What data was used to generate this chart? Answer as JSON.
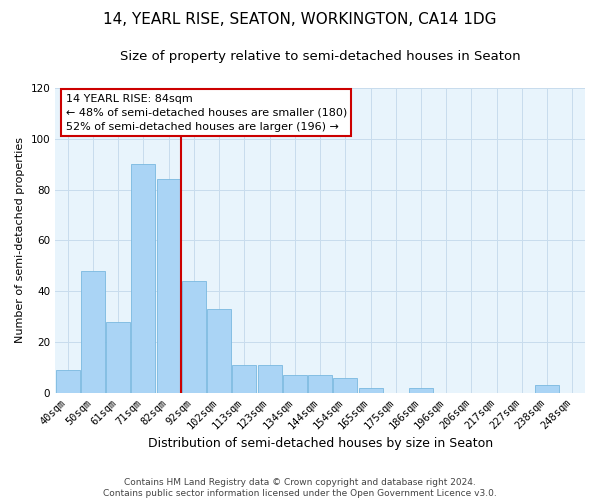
{
  "title": "14, YEARL RISE, SEATON, WORKINGTON, CA14 1DG",
  "subtitle": "Size of property relative to semi-detached houses in Seaton",
  "xlabel": "Distribution of semi-detached houses by size in Seaton",
  "ylabel": "Number of semi-detached properties",
  "footer_line1": "Contains HM Land Registry data © Crown copyright and database right 2024.",
  "footer_line2": "Contains public sector information licensed under the Open Government Licence v3.0.",
  "bar_labels": [
    "40sqm",
    "50sqm",
    "61sqm",
    "71sqm",
    "82sqm",
    "92sqm",
    "102sqm",
    "113sqm",
    "123sqm",
    "134sqm",
    "144sqm",
    "154sqm",
    "165sqm",
    "175sqm",
    "186sqm",
    "196sqm",
    "206sqm",
    "217sqm",
    "227sqm",
    "238sqm",
    "248sqm"
  ],
  "bar_values": [
    9,
    48,
    28,
    90,
    84,
    44,
    33,
    11,
    11,
    7,
    7,
    6,
    2,
    0,
    2,
    0,
    0,
    0,
    0,
    3,
    0
  ],
  "bar_color": "#aad4f5",
  "bar_edge_color": "#7ab8e0",
  "vline_index": 4,
  "vline_color": "#cc0000",
  "annotation_title": "14 YEARL RISE: 84sqm",
  "annotation_line1": "← 48% of semi-detached houses are smaller (180)",
  "annotation_line2": "52% of semi-detached houses are larger (196) →",
  "annotation_box_facecolor": "#ffffff",
  "annotation_box_edgecolor": "#cc0000",
  "ylim": [
    0,
    120
  ],
  "yticks": [
    0,
    20,
    40,
    60,
    80,
    100,
    120
  ],
  "plot_bg_color": "#e8f4fc",
  "fig_bg_color": "#ffffff",
  "grid_color": "#c8dced",
  "title_fontsize": 11,
  "subtitle_fontsize": 9.5,
  "xlabel_fontsize": 9,
  "ylabel_fontsize": 8,
  "tick_fontsize": 7.5,
  "annotation_fontsize": 8,
  "footer_fontsize": 6.5
}
